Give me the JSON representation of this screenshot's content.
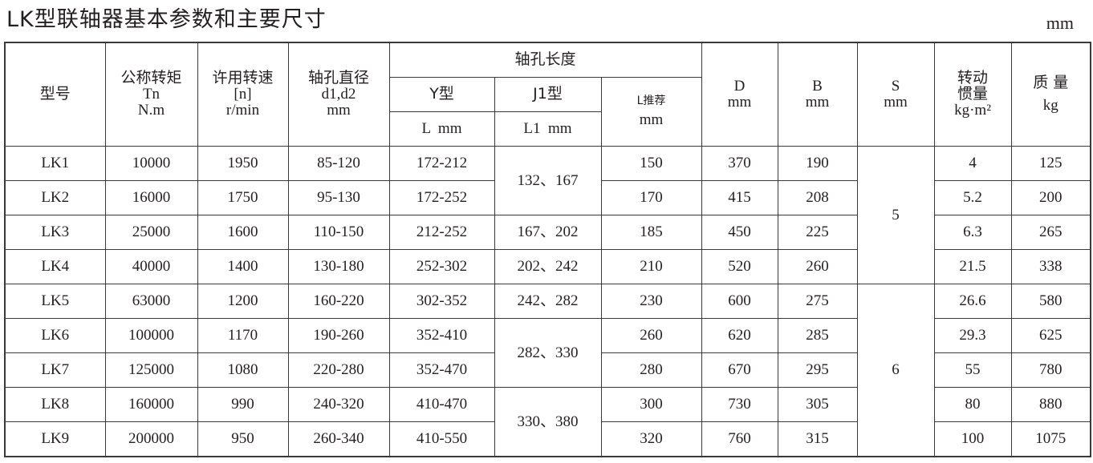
{
  "title": "LK型联轴器基本参数和主要尺寸",
  "unit": "mm",
  "headers": {
    "model": "型号",
    "torque": {
      "label": "公称转矩",
      "symbol": "Tn",
      "unit": "N.m"
    },
    "speed": {
      "label": "许用转速",
      "symbol": "[n]",
      "unit": "r/min"
    },
    "bore_diameter": {
      "label": "轴孔直径",
      "symbol": "d1,d2",
      "unit": "mm"
    },
    "bore_length": {
      "label": "轴孔长度",
      "y_type": "Y型",
      "y_unit": "L  mm",
      "j1_type": "J1型",
      "j1_unit": "L1  mm",
      "l_rec": "L推荐",
      "l_rec_unit": "mm"
    },
    "D": {
      "label": "D",
      "unit": "mm"
    },
    "B": {
      "label": "B",
      "unit": "mm"
    },
    "S": {
      "label": "S",
      "unit": "mm"
    },
    "inertia": {
      "label1": "转动",
      "label2": "惯量",
      "unit": "kg·m²"
    },
    "mass": {
      "label": "质  量",
      "unit": "kg"
    }
  },
  "rows": [
    {
      "model": "LK1",
      "torque": "10000",
      "speed": "1950",
      "d": "85-120",
      "y": "172-212",
      "lrec": "150",
      "D": "370",
      "B": "190",
      "inertia": "4",
      "mass": "125"
    },
    {
      "model": "LK2",
      "torque": "16000",
      "speed": "1750",
      "d": "95-130",
      "y": "172-252",
      "lrec": "170",
      "D": "415",
      "B": "208",
      "inertia": "5.2",
      "mass": "200"
    },
    {
      "model": "LK3",
      "torque": "25000",
      "speed": "1600",
      "d": "110-150",
      "y": "212-252",
      "lrec": "185",
      "D": "450",
      "B": "225",
      "inertia": "6.3",
      "mass": "265"
    },
    {
      "model": "LK4",
      "torque": "40000",
      "speed": "1400",
      "d": "130-180",
      "y": "252-302",
      "lrec": "210",
      "D": "520",
      "B": "260",
      "inertia": "21.5",
      "mass": "338"
    },
    {
      "model": "LK5",
      "torque": "63000",
      "speed": "1200",
      "d": "160-220",
      "y": "302-352",
      "lrec": "230",
      "D": "600",
      "B": "275",
      "inertia": "26.6",
      "mass": "580"
    },
    {
      "model": "LK6",
      "torque": "100000",
      "speed": "1170",
      "d": "190-260",
      "y": "352-410",
      "lrec": "260",
      "D": "620",
      "B": "285",
      "inertia": "29.3",
      "mass": "625"
    },
    {
      "model": "LK7",
      "torque": "125000",
      "speed": "1080",
      "d": "220-280",
      "y": "352-470",
      "lrec": "280",
      "D": "670",
      "B": "295",
      "inertia": "55",
      "mass": "780"
    },
    {
      "model": "LK8",
      "torque": "160000",
      "speed": "990",
      "d": "240-320",
      "y": "410-470",
      "lrec": "300",
      "D": "730",
      "B": "305",
      "inertia": "80",
      "mass": "880"
    },
    {
      "model": "LK9",
      "torque": "200000",
      "speed": "950",
      "d": "260-340",
      "y": "410-550",
      "lrec": "320",
      "D": "760",
      "B": "315",
      "inertia": "100",
      "mass": "1075"
    }
  ],
  "j1_groups": [
    "132、167",
    "167、202",
    "202、242",
    "242、282",
    "282、330",
    "330、380"
  ],
  "s_groups": [
    "5",
    "6"
  ]
}
